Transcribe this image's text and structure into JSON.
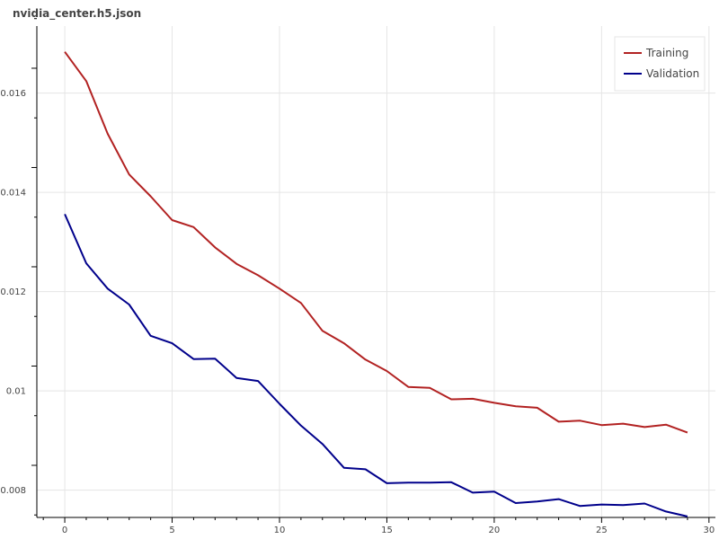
{
  "chart_data": {
    "type": "line",
    "title": "nvidia_center.h5.json",
    "xlabel": "",
    "ylabel": "",
    "xlim": [
      -1.3,
      30.3
    ],
    "ylim": [
      0.00745,
      0.01735
    ],
    "x_ticks": [
      0,
      5,
      10,
      15,
      20,
      25,
      30
    ],
    "y_ticks": [
      0.008,
      0.01,
      0.012,
      0.014,
      0.016
    ],
    "y_tick_labels": [
      "0.008",
      "0.01",
      "0.012",
      "0.014",
      "0.016"
    ],
    "grid": true,
    "legend_position": "top-right",
    "x": [
      0,
      1,
      2,
      3,
      4,
      5,
      6,
      7,
      8,
      9,
      10,
      11,
      12,
      13,
      14,
      15,
      16,
      17,
      18,
      19,
      20,
      21,
      22,
      23,
      24,
      25,
      26,
      27,
      28,
      29
    ],
    "series": [
      {
        "name": "Training",
        "color": "#b22222",
        "values": [
          0.01683,
          0.01624,
          0.01518,
          0.01436,
          0.01392,
          0.01344,
          0.0133,
          0.01289,
          0.01256,
          0.01233,
          0.01206,
          0.01177,
          0.01121,
          0.01096,
          0.01063,
          0.0104,
          0.01008,
          0.01006,
          0.00983,
          0.00984,
          0.00976,
          0.00969,
          0.00966,
          0.00938,
          0.0094,
          0.00931,
          0.00934,
          0.00927,
          0.00932,
          0.00916
        ]
      },
      {
        "name": "Validation",
        "color": "#00008b",
        "values": [
          0.01356,
          0.01257,
          0.01206,
          0.01174,
          0.01111,
          0.01096,
          0.01064,
          0.01065,
          0.01026,
          0.0102,
          0.00974,
          0.0093,
          0.00893,
          0.00845,
          0.00842,
          0.00814,
          0.00815,
          0.00815,
          0.00816,
          0.00795,
          0.00797,
          0.00774,
          0.00777,
          0.00782,
          0.00768,
          0.00771,
          0.0077,
          0.00773,
          0.00757,
          0.00747
        ]
      }
    ]
  }
}
